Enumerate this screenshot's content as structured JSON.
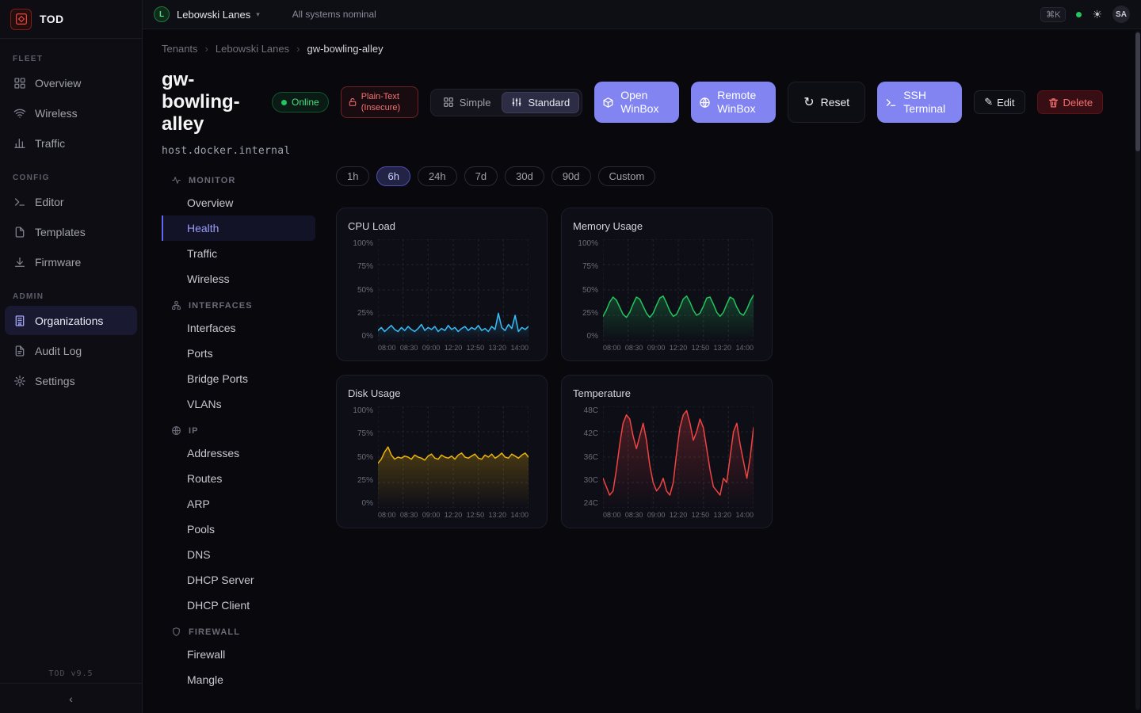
{
  "app": {
    "name": "TOD",
    "version": "TOD v9.5",
    "collapse": "‹"
  },
  "topbar": {
    "tenant_initial": "L",
    "tenant_name": "Lebowski Lanes",
    "caret": "▾",
    "status_text": "All systems nominal",
    "shortcut_badge": "⌘K",
    "theme_icon": "☀",
    "user_initials": "SA"
  },
  "sidebar": {
    "sections": [
      {
        "label": "FLEET",
        "items": [
          "Overview",
          "Wireless",
          "Traffic"
        ]
      },
      {
        "label": "CONFIG",
        "items": [
          "Editor",
          "Templates",
          "Firmware"
        ]
      },
      {
        "label": "ADMIN",
        "items": [
          "Organizations",
          "Audit Log",
          "Settings"
        ]
      }
    ],
    "active_item": "Organizations"
  },
  "breadcrumb": [
    "Tenants",
    "Lebowski Lanes",
    "gw-bowling-alley"
  ],
  "device": {
    "name": "gw-bowling-alley",
    "status_badge": "Online",
    "warning_badge": "Plain-Text (Insecure)",
    "host": "host.docker.internal"
  },
  "toolbar": {
    "simple_label": "Simple",
    "standard_label": "Standard",
    "open_winbox_label": "Open WinBox",
    "remote_winbox_label": "Remote WinBox",
    "reset_label": "Reset",
    "ssh_terminal_label": "SSH Terminal",
    "edit_label": "Edit",
    "edit_icon": "✎",
    "reset_icon": "↻",
    "delete_label": "Delete"
  },
  "subnav": {
    "sections": [
      {
        "label": "MONITOR",
        "items": [
          "Overview",
          "Health",
          "Traffic",
          "Wireless"
        ]
      },
      {
        "label": "INTERFACES",
        "items": [
          "Interfaces",
          "Ports",
          "Bridge Ports",
          "VLANs"
        ]
      },
      {
        "label": "IP",
        "items": [
          "Addresses",
          "Routes",
          "ARP",
          "Pools",
          "DNS",
          "DHCP Server",
          "DHCP Client"
        ]
      },
      {
        "label": "FIREWALL",
        "items": [
          "Firewall",
          "Mangle"
        ]
      }
    ],
    "active_item": "Health"
  },
  "time_ranges": {
    "options": [
      "1h",
      "6h",
      "24h",
      "7d",
      "30d",
      "90d",
      "Custom"
    ],
    "active": "6h"
  },
  "chart_data": [
    {
      "type": "line",
      "title": "CPU Load",
      "color": "#38bdf8",
      "unit": "%",
      "ylim": [
        0,
        100
      ],
      "yticks": [
        "100%",
        "75%",
        "50%",
        "25%",
        "0%"
      ],
      "xticks": [
        "08:00",
        "08:30",
        "09:00",
        "12:20",
        "12:50",
        "13:20",
        "14:00"
      ],
      "values": [
        10,
        13,
        9,
        12,
        15,
        11,
        9,
        13,
        10,
        14,
        11,
        9,
        12,
        16,
        10,
        13,
        11,
        14,
        9,
        12,
        10,
        15,
        11,
        13,
        9,
        12,
        14,
        10,
        13,
        11,
        15,
        10,
        12,
        9,
        14,
        11,
        27,
        13,
        10,
        16,
        12,
        25,
        9,
        13,
        11,
        14
      ]
    },
    {
      "type": "line",
      "title": "Memory Usage",
      "color": "#22c55e",
      "unit": "%",
      "ylim": [
        0,
        100
      ],
      "yticks": [
        "100%",
        "75%",
        "50%",
        "25%",
        "0%"
      ],
      "xticks": [
        "08:00",
        "08:30",
        "09:00",
        "12:20",
        "12:50",
        "13:20",
        "14:00"
      ],
      "values": [
        24,
        30,
        38,
        43,
        40,
        33,
        26,
        23,
        28,
        36,
        43,
        41,
        34,
        27,
        23,
        27,
        35,
        42,
        44,
        37,
        29,
        24,
        26,
        33,
        41,
        44,
        38,
        30,
        25,
        27,
        34,
        42,
        43,
        36,
        28,
        24,
        28,
        36,
        43,
        41,
        33,
        27,
        25,
        31,
        39,
        45
      ]
    },
    {
      "type": "line",
      "title": "Disk Usage",
      "color": "#eab308",
      "unit": "%",
      "ylim": [
        0,
        100
      ],
      "yticks": [
        "100%",
        "75%",
        "50%",
        "25%",
        "0%"
      ],
      "xticks": [
        "08:00",
        "08:30",
        "09:00",
        "12:20",
        "12:50",
        "13:20",
        "14:00"
      ],
      "values": [
        44,
        48,
        55,
        60,
        52,
        48,
        50,
        49,
        51,
        50,
        48,
        52,
        50,
        49,
        47,
        51,
        53,
        49,
        48,
        52,
        50,
        49,
        51,
        48,
        52,
        54,
        50,
        49,
        51,
        53,
        49,
        48,
        52,
        50,
        53,
        49,
        51,
        54,
        50,
        49,
        53,
        51,
        49,
        52,
        54,
        50
      ]
    },
    {
      "type": "line",
      "title": "Temperature",
      "color": "#ef4444",
      "unit": "C",
      "ylim": [
        24,
        48
      ],
      "yticks": [
        "48C",
        "42C",
        "36C",
        "30C",
        "24C"
      ],
      "xticks": [
        "08:00",
        "08:30",
        "09:00",
        "12:20",
        "12:50",
        "13:20",
        "14:00"
      ],
      "values": [
        31,
        29,
        27,
        28,
        33,
        39,
        44,
        46,
        45,
        41,
        38,
        41,
        44,
        40,
        34,
        30,
        28,
        29,
        31,
        28,
        27,
        30,
        37,
        43,
        46,
        47,
        44,
        40,
        42,
        45,
        43,
        38,
        33,
        29,
        28,
        27,
        31,
        30,
        36,
        42,
        44,
        39,
        35,
        31,
        36,
        43
      ]
    }
  ]
}
